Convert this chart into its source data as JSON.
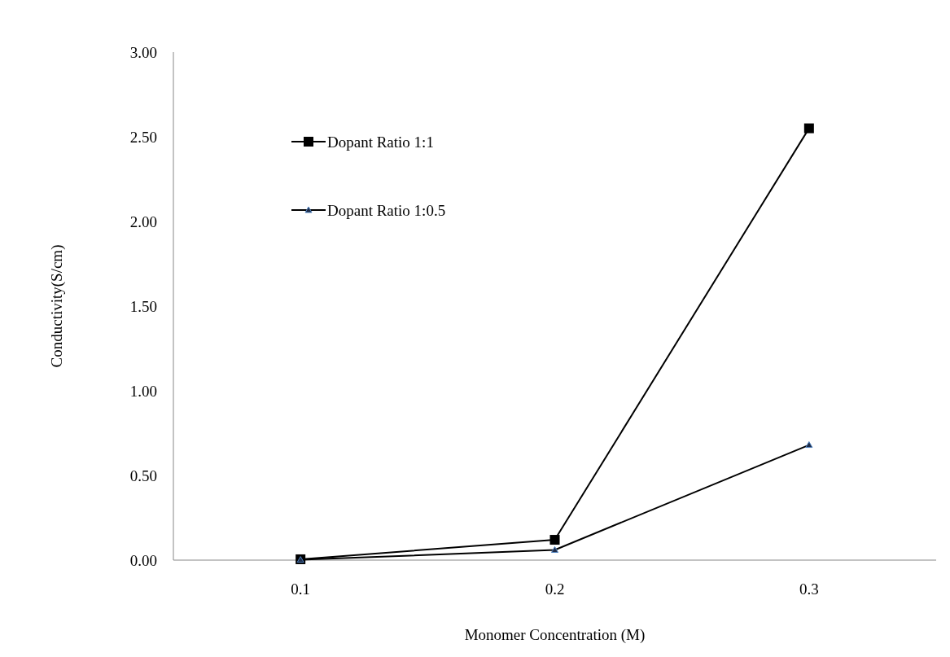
{
  "chart_data": {
    "type": "line",
    "xlabel": "Monomer Concentration (M)",
    "ylabel": "Conductivity(S/cm)",
    "categories": [
      "0.1",
      "0.2",
      "0.3"
    ],
    "series": [
      {
        "name": "Dopant Ratio 1:1",
        "color": "#000000",
        "marker": "square",
        "values": [
          0.005,
          0.12,
          2.55
        ]
      },
      {
        "name": "Dopant Ratio 1:0.5",
        "color": "#000000",
        "marker": "triangle",
        "values": [
          0.002,
          0.06,
          0.68
        ]
      }
    ],
    "ylim": [
      0,
      3
    ],
    "yticks": [
      {
        "value": 0,
        "label": "0.00"
      },
      {
        "value": 0.5,
        "label": "0.50"
      },
      {
        "value": 1,
        "label": "1.00"
      },
      {
        "value": 1.5,
        "label": "1.50"
      },
      {
        "value": 2,
        "label": "2.00"
      },
      {
        "value": 2.5,
        "label": "2.50"
      },
      {
        "value": 3,
        "label": "3.00"
      }
    ],
    "grid": false,
    "legend": "top left",
    "line_style": "solid"
  }
}
